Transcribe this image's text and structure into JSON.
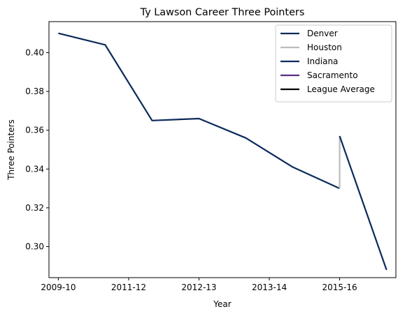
{
  "chart_data": {
    "type": "line",
    "title": "Ty Lawson Career Three Pointers",
    "xlabel": "Year",
    "ylabel": "Three Pointers",
    "x_index_range": [
      -0.2,
      7.2
    ],
    "ylim": [
      0.284,
      0.416
    ],
    "x_ticks": [
      {
        "i": 0,
        "label": "2009-10"
      },
      {
        "i": 1.5,
        "label": "2011-12"
      },
      {
        "i": 3,
        "label": "2012-13"
      },
      {
        "i": 4.5,
        "label": "2013-14"
      },
      {
        "i": 6,
        "label": "2015-16"
      }
    ],
    "y_ticks": [
      {
        "value": 0.3,
        "label": "0.30"
      },
      {
        "value": 0.32,
        "label": "0.32"
      },
      {
        "value": 0.34,
        "label": "0.34"
      },
      {
        "value": 0.36,
        "label": "0.36"
      },
      {
        "value": 0.38,
        "label": "0.38"
      },
      {
        "value": 0.4,
        "label": "0.40"
      }
    ],
    "grid": false,
    "legend_position": "top-right",
    "series": [
      {
        "name": "Denver",
        "color": "#0b2a5b",
        "points": [
          [
            0,
            0.41
          ],
          [
            1,
            0.404
          ],
          [
            2,
            0.365
          ],
          [
            3,
            0.366
          ],
          [
            4,
            0.356
          ],
          [
            5,
            0.341
          ],
          [
            6,
            0.33
          ]
        ]
      },
      {
        "name": "Houston",
        "color": "#bcbcbc",
        "points": [
          [
            6,
            0.33
          ],
          [
            6,
            0.357
          ]
        ]
      },
      {
        "name": "Indiana",
        "color": "#0b2a5b",
        "points": [
          [
            6,
            0.357
          ],
          [
            7,
            0.288
          ]
        ]
      },
      {
        "name": "Sacramento",
        "color": "#5a2d82",
        "points": []
      },
      {
        "name": "League Average",
        "color": "#000000",
        "points": []
      }
    ]
  }
}
